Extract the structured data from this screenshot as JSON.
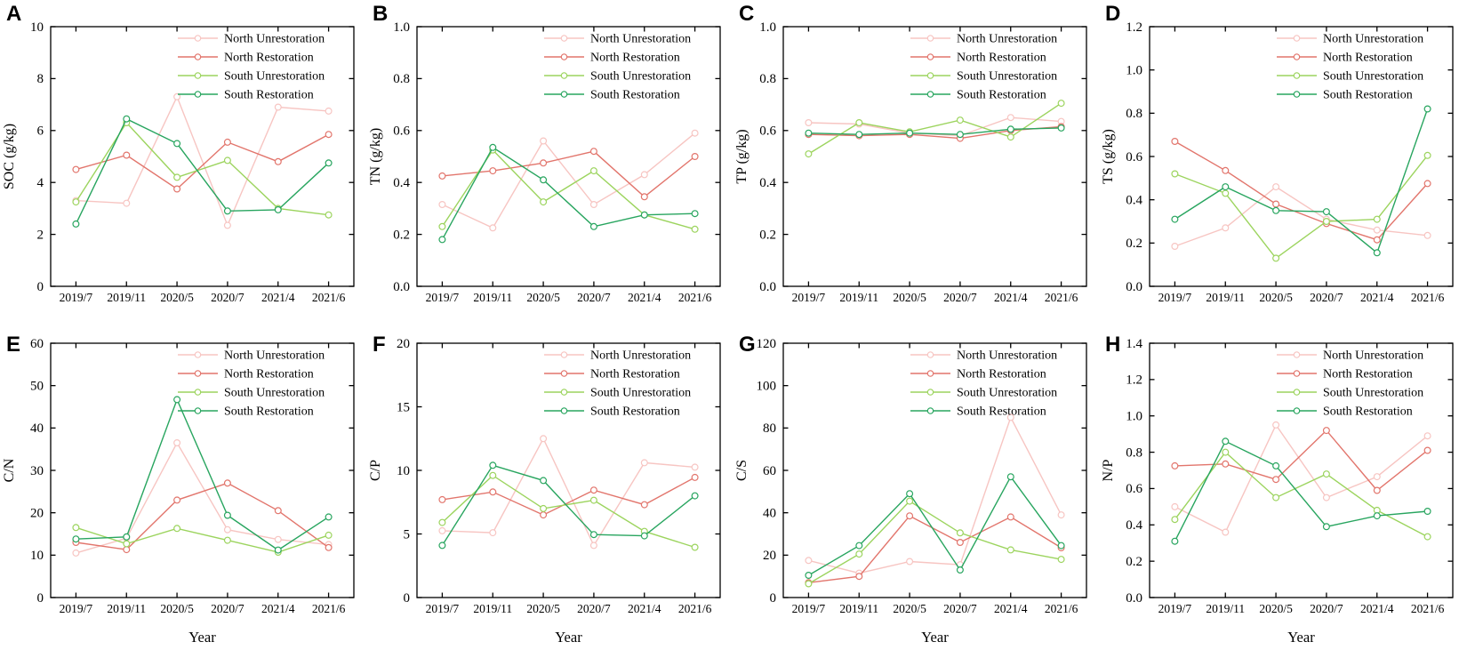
{
  "figure_title": "",
  "xlabel": "Year",
  "categories": [
    "2019/7",
    "2019/11",
    "2020/5",
    "2020/7",
    "2021/4",
    "2021/6"
  ],
  "legend": {
    "position": "top-right",
    "entries": [
      "North Unrestoration",
      "North Restoration",
      "South Unrestoration",
      "South Restoration"
    ]
  },
  "series_colors": [
    "#f7c5c2",
    "#e2756c",
    "#9cd45e",
    "#28a55f"
  ],
  "axis_color": "#000000",
  "chart_data": [
    {
      "type": "line",
      "letter": "A",
      "ylabel": "SOC (g/kg)",
      "ylim": [
        0,
        10
      ],
      "ytick_step": 2,
      "ydecimals": 0,
      "grid": false,
      "legend_position": "top-right",
      "series": [
        {
          "name": "North Unrestoration",
          "values": [
            3.3,
            3.2,
            7.3,
            2.35,
            6.9,
            6.75
          ]
        },
        {
          "name": "North Restoration",
          "values": [
            4.5,
            5.05,
            3.75,
            5.55,
            4.8,
            5.85
          ]
        },
        {
          "name": "South Unrestoration",
          "values": [
            3.25,
            6.3,
            4.2,
            4.85,
            3.0,
            2.75
          ]
        },
        {
          "name": "South Restoration",
          "values": [
            2.4,
            6.45,
            5.5,
            2.9,
            2.95,
            4.75
          ]
        }
      ]
    },
    {
      "type": "line",
      "letter": "B",
      "ylabel": "TN (g/kg)",
      "ylim": [
        0,
        1.0
      ],
      "ytick_step": 0.2,
      "ydecimals": 1,
      "grid": false,
      "legend_position": "top-right",
      "series": [
        {
          "name": "North Unrestoration",
          "values": [
            0.315,
            0.225,
            0.56,
            0.315,
            0.43,
            0.59
          ]
        },
        {
          "name": "North Restoration",
          "values": [
            0.425,
            0.445,
            0.475,
            0.52,
            0.345,
            0.5
          ]
        },
        {
          "name": "South Unrestoration",
          "values": [
            0.23,
            0.525,
            0.325,
            0.445,
            0.275,
            0.22
          ]
        },
        {
          "name": "South Restoration",
          "values": [
            0.18,
            0.535,
            0.41,
            0.23,
            0.275,
            0.28
          ]
        }
      ]
    },
    {
      "type": "line",
      "letter": "C",
      "ylabel": "TP (g/kg)",
      "ylim": [
        0,
        1.0
      ],
      "ytick_step": 0.2,
      "ydecimals": 1,
      "grid": false,
      "legend_position": "top-right",
      "series": [
        {
          "name": "North Unrestoration",
          "values": [
            0.63,
            0.625,
            0.59,
            0.58,
            0.65,
            0.635
          ]
        },
        {
          "name": "North Restoration",
          "values": [
            0.585,
            0.58,
            0.585,
            0.57,
            0.6,
            0.615
          ]
        },
        {
          "name": "South Unrestoration",
          "values": [
            0.51,
            0.63,
            0.595,
            0.64,
            0.575,
            0.705
          ]
        },
        {
          "name": "South Restoration",
          "values": [
            0.59,
            0.585,
            0.59,
            0.585,
            0.605,
            0.61
          ]
        }
      ]
    },
    {
      "type": "line",
      "letter": "D",
      "ylabel": "TS (g/kg)",
      "ylim": [
        0,
        1.2
      ],
      "ytick_step": 0.2,
      "ydecimals": 1,
      "grid": false,
      "legend_position": "top-right",
      "series": [
        {
          "name": "North Unrestoration",
          "values": [
            0.185,
            0.27,
            0.46,
            0.31,
            0.26,
            0.235
          ]
        },
        {
          "name": "North Restoration",
          "values": [
            0.67,
            0.535,
            0.38,
            0.29,
            0.215,
            0.475
          ]
        },
        {
          "name": "South Unrestoration",
          "values": [
            0.52,
            0.43,
            0.13,
            0.3,
            0.31,
            0.605
          ]
        },
        {
          "name": "South Restoration",
          "values": [
            0.31,
            0.46,
            0.35,
            0.345,
            0.155,
            0.82
          ]
        }
      ]
    },
    {
      "type": "line",
      "letter": "E",
      "ylabel": "C/N",
      "ylim": [
        0,
        60
      ],
      "ytick_step": 10,
      "ydecimals": 0,
      "grid": false,
      "legend_position": "top-right",
      "series": [
        {
          "name": "North Unrestoration",
          "values": [
            10.5,
            14,
            36.5,
            16,
            13.7,
            12.5
          ]
        },
        {
          "name": "North Restoration",
          "values": [
            13,
            11.3,
            23,
            27,
            20.5,
            11.8
          ]
        },
        {
          "name": "South Unrestoration",
          "values": [
            16.5,
            12.7,
            16.3,
            13.5,
            10.7,
            14.7
          ]
        },
        {
          "name": "South Restoration",
          "values": [
            13.8,
            14.3,
            46.7,
            19.4,
            11.2,
            19
          ]
        }
      ]
    },
    {
      "type": "line",
      "letter": "F",
      "ylabel": "C/P",
      "ylim": [
        0,
        20
      ],
      "ytick_step": 5,
      "ydecimals": 0,
      "grid": false,
      "legend_position": "top-right",
      "series": [
        {
          "name": "North Unrestoration",
          "values": [
            5.25,
            5.1,
            12.5,
            4.1,
            10.6,
            10.25
          ]
        },
        {
          "name": "North Restoration",
          "values": [
            7.7,
            8.3,
            6.5,
            8.45,
            7.3,
            9.45
          ]
        },
        {
          "name": "South Unrestoration",
          "values": [
            5.9,
            9.6,
            7.0,
            7.65,
            5.2,
            3.95
          ]
        },
        {
          "name": "South Restoration",
          "values": [
            4.1,
            10.4,
            9.2,
            4.95,
            4.85,
            8.0
          ]
        }
      ]
    },
    {
      "type": "line",
      "letter": "G",
      "ylabel": "C/S",
      "ylim": [
        0,
        120
      ],
      "ytick_step": 20,
      "ydecimals": 0,
      "grid": false,
      "legend_position": "top-right",
      "series": [
        {
          "name": "North Unrestoration",
          "values": [
            17.5,
            11.5,
            17,
            15.5,
            85,
            39
          ]
        },
        {
          "name": "North Restoration",
          "values": [
            7,
            10,
            38.5,
            26,
            38,
            23.5
          ]
        },
        {
          "name": "South Unrestoration",
          "values": [
            6.5,
            20.5,
            45.5,
            30.5,
            22.5,
            18
          ]
        },
        {
          "name": "South Restoration",
          "values": [
            10.5,
            24.5,
            49,
            13,
            57,
            24.5
          ]
        }
      ]
    },
    {
      "type": "line",
      "letter": "H",
      "ylabel": "N/P",
      "ylim": [
        0,
        1.4
      ],
      "ytick_step": 0.2,
      "ydecimals": 1,
      "grid": false,
      "legend_position": "top-right",
      "series": [
        {
          "name": "North Unrestoration",
          "values": [
            0.5,
            0.36,
            0.95,
            0.55,
            0.665,
            0.89
          ]
        },
        {
          "name": "North Restoration",
          "values": [
            0.725,
            0.735,
            0.65,
            0.92,
            0.59,
            0.81
          ]
        },
        {
          "name": "South Unrestoration",
          "values": [
            0.43,
            0.8,
            0.55,
            0.68,
            0.48,
            0.335
          ]
        },
        {
          "name": "South Restoration",
          "values": [
            0.31,
            0.86,
            0.725,
            0.39,
            0.45,
            0.475
          ]
        }
      ]
    }
  ]
}
